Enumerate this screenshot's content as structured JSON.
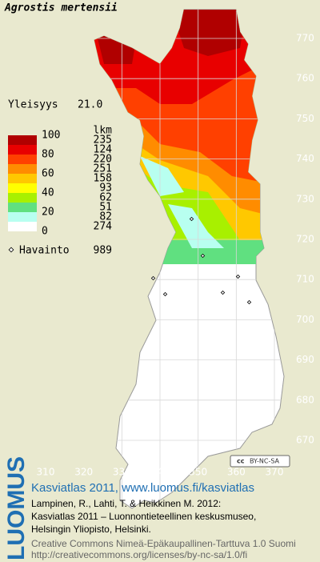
{
  "map": {
    "title": "Agrostis mertensii",
    "frequency_label": "Yleisyys",
    "frequency": 21.0,
    "frequency_text": "21.0",
    "count_header": "lkm",
    "legend_ticks": [
      100,
      80,
      60,
      40,
      20,
      0
    ],
    "classes": [
      {
        "color": "#b00000",
        "count": 235
      },
      {
        "color": "#e80000",
        "count": 124
      },
      {
        "color": "#ff4000",
        "count": 220
      },
      {
        "color": "#ff8c00",
        "count": 251
      },
      {
        "color": "#ffc800",
        "count": 158
      },
      {
        "color": "#ffff00",
        "count": 93
      },
      {
        "color": "#a8f000",
        "count": 62
      },
      {
        "color": "#60e080",
        "count": 51
      },
      {
        "color": "#b8fff0",
        "count": 82
      },
      {
        "color": "#ffffff",
        "count": 274
      }
    ],
    "observation_label": "Havainto",
    "observations": 989,
    "xticks": [
      310,
      320,
      330,
      340,
      350,
      360,
      370
    ],
    "yticks": [
      670,
      680,
      690,
      700,
      710,
      720,
      730,
      740,
      750,
      760,
      770
    ],
    "xlim": [
      310,
      370
    ],
    "ylim": [
      670,
      770
    ],
    "license_badge": "BY-NC-SA"
  },
  "footer": {
    "logo": "LUOMUS",
    "heading": "Kasviatlas 2011, www.luomus.fi/kasviatlas",
    "citation": [
      "Lampinen, R., Lahti, T. & Heikkinen M. 2012:",
      "Kasviatlas 2011 – Luonnontieteellinen keskusmuseo,",
      "Helsingin Yliopisto, Helsinki."
    ],
    "license": [
      "Creative Commons Nimeä-Epäkaupallinen-Tarttuva 1.0 Suomi",
      "http://creativecommons.org/licenses/by-nc-sa/1.0/fi"
    ]
  }
}
